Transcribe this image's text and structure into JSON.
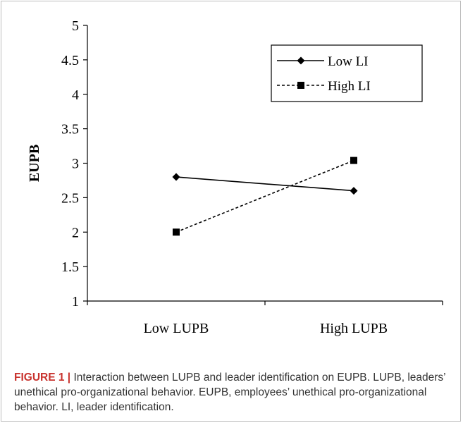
{
  "chart_data": {
    "type": "line",
    "categories": [
      "Low LUPB",
      "High LUPB"
    ],
    "ylabel": "EUPB",
    "xlabel": "",
    "ylim": [
      1,
      5
    ],
    "yticks": [
      "1",
      "1.5",
      "2",
      "2.5",
      "3",
      "3.5",
      "4",
      "4.5",
      "5"
    ],
    "grid": false,
    "legend_position": "top-right",
    "series": [
      {
        "name": "Low LI",
        "values": [
          2.8,
          2.6
        ],
        "marker": "diamond",
        "line": "solid",
        "color": "#000000"
      },
      {
        "name": "High LI",
        "values": [
          2.0,
          3.04
        ],
        "marker": "square",
        "line": "dashed",
        "color": "#000000"
      }
    ]
  },
  "caption": {
    "label": "FIGURE 1",
    "separator": "|",
    "text": "Interaction between LUPB and leader identification on EUPB. LUPB, leaders’ unethical pro-organizational behavior. EUPB, employees’ unethical pro-organizational behavior. LI, leader identification."
  }
}
